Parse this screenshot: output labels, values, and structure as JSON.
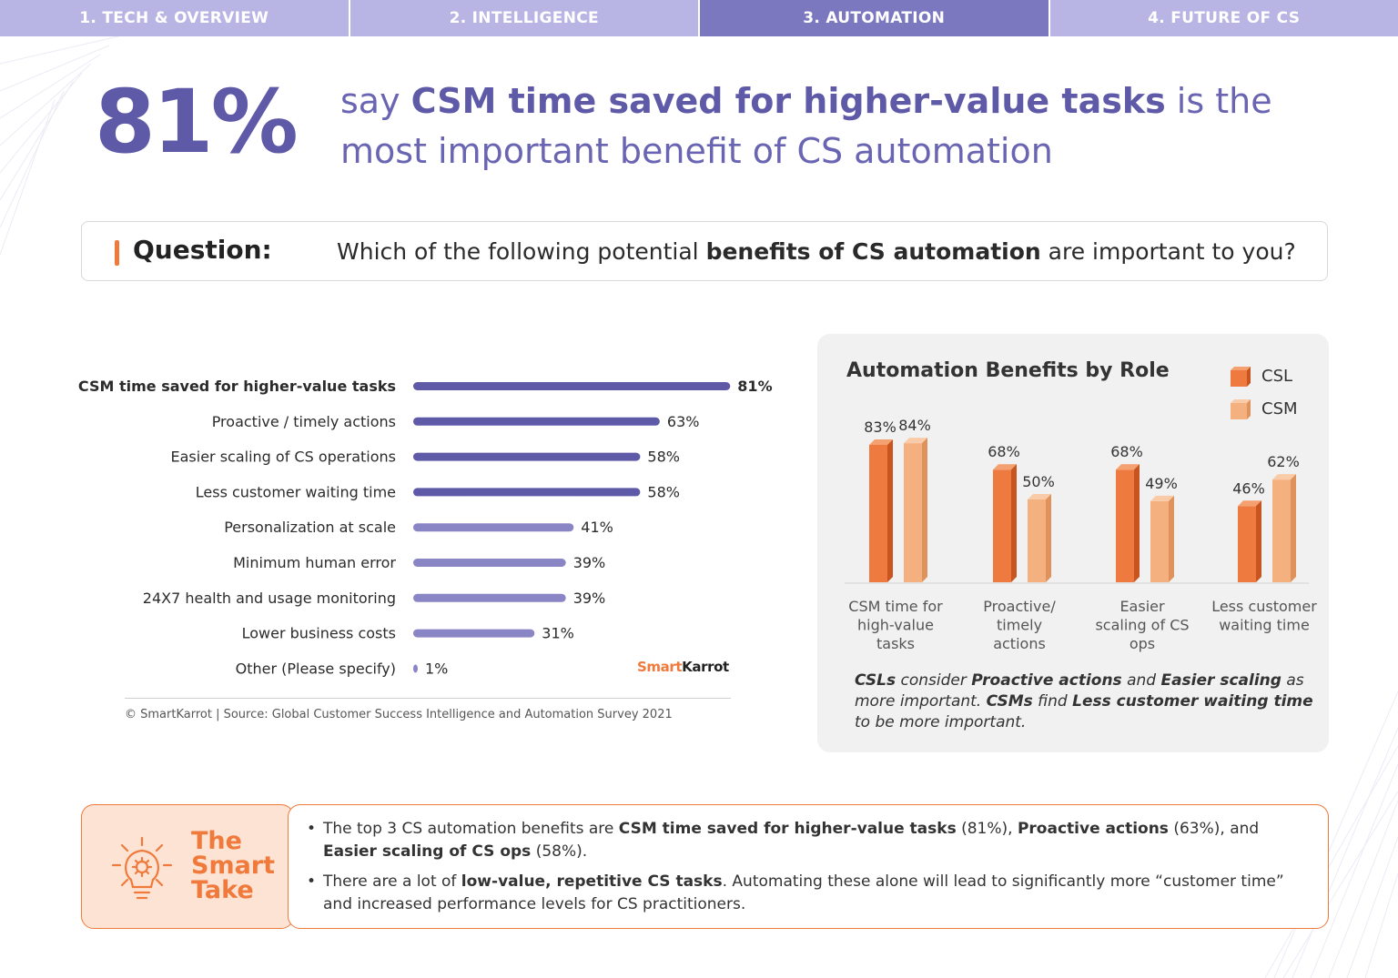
{
  "nav": {
    "tabs": [
      {
        "label": "1. TECH & OVERVIEW",
        "active": false
      },
      {
        "label": "2. INTELLIGENCE",
        "active": false
      },
      {
        "label": "3. AUTOMATION",
        "active": true
      },
      {
        "label": "4. FUTURE OF CS",
        "active": false
      }
    ]
  },
  "hero": {
    "percent": "81%",
    "text_pre": "say ",
    "text_bold": "CSM time saved for higher-value tasks",
    "text_post": " is the most important benefit of CS automation"
  },
  "question": {
    "label": "Question:",
    "text_pre": "Which of the following potential ",
    "text_bold": "benefits of CS automation",
    "text_post": " are important to you?"
  },
  "chart_data": [
    {
      "type": "bar",
      "orientation": "horizontal",
      "categories": [
        "CSM time saved for higher-value tasks",
        "Proactive / timely actions",
        "Easier scaling of CS operations",
        "Less customer waiting time",
        "Personalization at scale",
        "Minimum human error",
        "24X7 health and usage monitoring",
        "Lower business costs",
        "Other (Please specify)"
      ],
      "values": [
        81,
        63,
        58,
        58,
        41,
        39,
        39,
        31,
        1
      ],
      "value_labels": [
        "81%",
        "63%",
        "58%",
        "58%",
        "41%",
        "39%",
        "39%",
        "31%",
        "1%"
      ],
      "unit": "%",
      "colors": [
        "#5f5aa8",
        "#5f5aa8",
        "#5f5aa8",
        "#5f5aa8",
        "#8a86c6",
        "#8a86c6",
        "#8a86c6",
        "#8a86c6",
        "#8a86c6"
      ]
    },
    {
      "type": "bar",
      "title": "Automation Benefits by Role",
      "categories": [
        "CSM time for high-value tasks",
        "Proactive/ timely actions",
        "Easier scaling of CS ops",
        "Less customer waiting time"
      ],
      "category_lines": [
        [
          "CSM time for",
          "high-value",
          "tasks"
        ],
        [
          "Proactive/",
          "timely",
          "actions"
        ],
        [
          "Easier",
          "scaling of CS",
          "ops"
        ],
        [
          "Less customer",
          "waiting time"
        ]
      ],
      "series": [
        {
          "name": "CSL",
          "values": [
            83,
            68,
            68,
            46
          ],
          "labels": [
            "83%",
            "68%",
            "68%",
            "46%"
          ],
          "color": "#ef7a3f"
        },
        {
          "name": "CSM",
          "values": [
            84,
            50,
            49,
            62
          ],
          "labels": [
            "84%",
            "50%",
            "49%",
            "62%"
          ],
          "color": "#f5b080"
        }
      ],
      "legend": "top-right"
    }
  ],
  "brand": {
    "part1": "Smart",
    "part2": "Karrot"
  },
  "source": "© SmartKarrot | Source: Global Customer Success Intelligence and Automation Survey 2021",
  "note": {
    "b1": "CSLs",
    "t1": " consider ",
    "b2": "Proactive actions",
    "t2": " and ",
    "b3": "Easier scaling",
    "t3": " as more important. ",
    "b4": "CSMs",
    "t4": " find ",
    "b5": "Less customer waiting time",
    "t5": " to be more important."
  },
  "smart_take": {
    "title_lines": [
      "The",
      "Smart",
      "Take"
    ],
    "bullet1": {
      "t1": "The top 3 CS automation benefits are ",
      "b1": "CSM time saved for higher-value tasks",
      "t2": " (81%), ",
      "b2": "Proactive actions",
      "t3": " (63%), and ",
      "b3": "Easier scaling of CS ops",
      "t4": " (58%)."
    },
    "bullet2": {
      "t1": "There are a lot of ",
      "b1": "low-value, repetitive CS tasks",
      "t2": ". Automating these alone will lead to significantly more “customer time” and increased performance levels for CS practitioners."
    }
  },
  "colors": {
    "accent_purple": "#5f5aa8",
    "accent_orange": "#f07a3c",
    "tab_bg": "#b8b5e4",
    "tab_active": "#7c78c0"
  }
}
